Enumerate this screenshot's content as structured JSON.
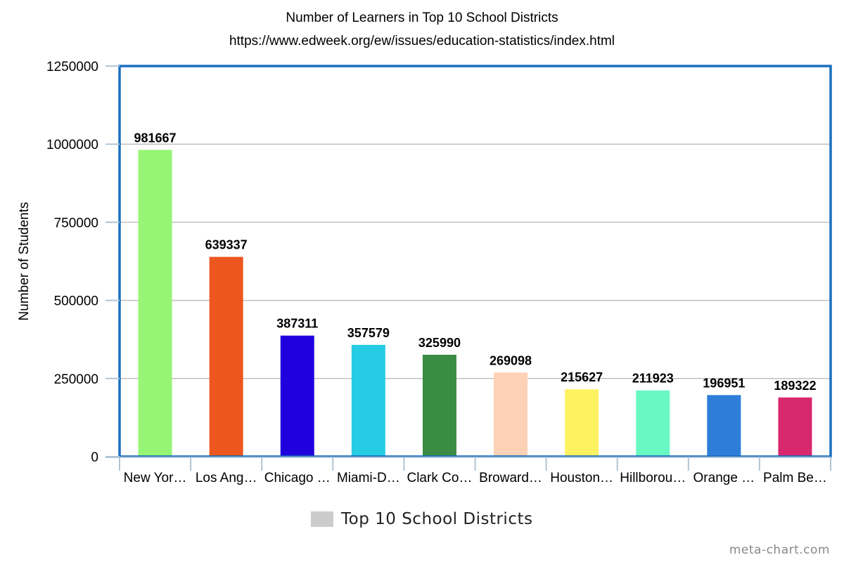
{
  "chart_data": {
    "type": "bar",
    "title": "Number of Learners in Top 10 School Districts",
    "subtitle": "https://www.edweek.org/ew/issues/education-statistics/index.html",
    "xlabel": "",
    "ylabel": "Number of Students",
    "ylim": [
      0,
      1250000
    ],
    "yticks": [
      0,
      250000,
      500000,
      750000,
      1000000,
      1250000
    ],
    "grid": true,
    "legend_position": "bottom",
    "categories": [
      "New Yor…",
      "Los Ang…",
      "Chicago …",
      "Miami-D…",
      "Clark Co…",
      "Broward…",
      "Houston…",
      "Hillborou…",
      "Orange …",
      "Palm Be…"
    ],
    "series": [
      {
        "name": "Top 10 School Districts",
        "values": [
          981667,
          639337,
          387311,
          357579,
          325990,
          269098,
          215627,
          211923,
          196951,
          189322
        ],
        "data_labels": [
          "981667",
          "639337",
          "387311",
          "357579",
          "325990",
          "269098",
          "215627",
          "211923",
          "196951",
          "189322"
        ],
        "colors": [
          "#96f575",
          "#ec571f",
          "#2000dd",
          "#25cce3",
          "#3a8b43",
          "#fdd1b6",
          "#fff262",
          "#69f8c4",
          "#2e7dd9",
          "#d8286e"
        ]
      }
    ],
    "legend_swatch_color": "#cccccc",
    "frame_color": "#1a6fbf",
    "grid_color": "#c0c0c0"
  },
  "watermark": "meta-chart.com"
}
